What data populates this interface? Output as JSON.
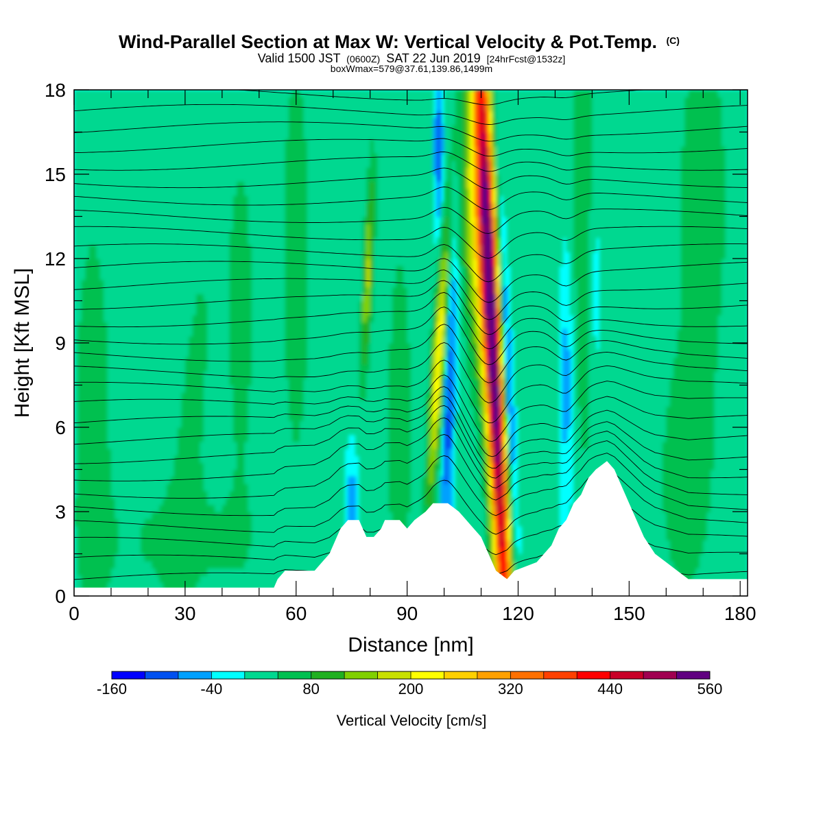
{
  "chart_data": {
    "type": "heatmap",
    "title": "Wind-Parallel Section at Max W: Vertical Velocity & Pot.Temp.",
    "title_mark": "(C)",
    "subtitle": {
      "part1": "Valid 1500 JST",
      "part2": "(0600Z)",
      "part3": "SAT 22 Jun 2019",
      "part4": "[24hrFcst@1532z]"
    },
    "note": "boxWmax=579@37.61,139.86,1499m",
    "xlabel": "Distance [nm]",
    "ylabel": "Height [Kft MSL]",
    "xlim": [
      0,
      182
    ],
    "ylim": [
      0,
      18
    ],
    "xticks": [
      0,
      30,
      60,
      90,
      120,
      150,
      180
    ],
    "yticks": [
      0,
      3,
      6,
      9,
      12,
      15,
      18
    ],
    "colorbar": {
      "label": "Vertical Velocity [cm/s]",
      "min": -160,
      "max": 560,
      "step": 40,
      "tick_labels": [
        "-160",
        "-40",
        "80",
        "200",
        "320",
        "440",
        "560"
      ],
      "colors": [
        "#0000ff",
        "#0050f0",
        "#00a0ff",
        "#00ffff",
        "#00d890",
        "#00c050",
        "#20b020",
        "#80d000",
        "#c8e000",
        "#ffff00",
        "#ffd000",
        "#ffa000",
        "#ff7000",
        "#ff4000",
        "#ff0000",
        "#c80028",
        "#a00050",
        "#600080"
      ]
    },
    "terrain_kft": [
      [
        0,
        0.3
      ],
      [
        54,
        0.3
      ],
      [
        55,
        0.6
      ],
      [
        57,
        0.9
      ],
      [
        65,
        0.9
      ],
      [
        67,
        1.2
      ],
      [
        69,
        1.5
      ],
      [
        70,
        1.8
      ],
      [
        71,
        2.1
      ],
      [
        72,
        2.4
      ],
      [
        74,
        2.7
      ],
      [
        77,
        2.7
      ],
      [
        78,
        2.4
      ],
      [
        79,
        2.1
      ],
      [
        81,
        2.1
      ],
      [
        83,
        2.4
      ],
      [
        84,
        2.7
      ],
      [
        88,
        2.7
      ],
      [
        90,
        2.4
      ],
      [
        92,
        2.7
      ],
      [
        95,
        3.0
      ],
      [
        97,
        3.3
      ],
      [
        101,
        3.3
      ],
      [
        104,
        3.0
      ],
      [
        106,
        2.7
      ],
      [
        108,
        2.4
      ],
      [
        110,
        2.1
      ],
      [
        112,
        1.5
      ],
      [
        114,
        0.9
      ],
      [
        117,
        0.6
      ],
      [
        119,
        0.9
      ],
      [
        125,
        1.2
      ],
      [
        127,
        1.5
      ],
      [
        129,
        1.8
      ],
      [
        131,
        2.4
      ],
      [
        133,
        2.7
      ],
      [
        135,
        3.3
      ],
      [
        137,
        3.6
      ],
      [
        139,
        4.2
      ],
      [
        141,
        4.5
      ],
      [
        144,
        4.8
      ],
      [
        146,
        4.5
      ],
      [
        148,
        3.9
      ],
      [
        150,
        3.3
      ],
      [
        152,
        2.7
      ],
      [
        154,
        2.1
      ],
      [
        157,
        1.5
      ],
      [
        160,
        1.2
      ],
      [
        163,
        0.9
      ],
      [
        166,
        0.6
      ],
      [
        182,
        0.6
      ]
    ],
    "updrafts": [
      {
        "x": 115,
        "z": 8,
        "w": 579
      },
      {
        "x": 98,
        "z": 9,
        "w": 230
      },
      {
        "x": 80,
        "z": 11,
        "w": 160
      }
    ]
  }
}
